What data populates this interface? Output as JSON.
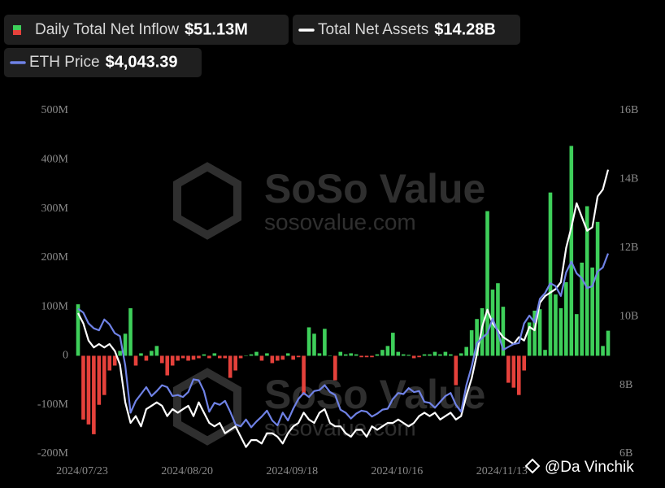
{
  "chart_data": {
    "type": "combo",
    "legend": [
      {
        "name": "Daily Total Net Inflow",
        "latest_label": "$51.13M"
      },
      {
        "name": "Total Net Assets",
        "latest_label": "$14.28B"
      },
      {
        "name": "ETH Price",
        "latest_label": "$4,043.39"
      }
    ],
    "categories": [
      "2024/07/23",
      null,
      null,
      null,
      null,
      null,
      null,
      null,
      null,
      null,
      null,
      null,
      null,
      null,
      null,
      null,
      null,
      null,
      null,
      null,
      "2024/08/20",
      null,
      null,
      null,
      null,
      null,
      null,
      null,
      null,
      null,
      null,
      null,
      null,
      null,
      null,
      null,
      null,
      null,
      null,
      null,
      "2024/09/18",
      null,
      null,
      null,
      null,
      null,
      null,
      null,
      null,
      null,
      null,
      null,
      null,
      null,
      null,
      null,
      null,
      null,
      null,
      null,
      "2024/10/16",
      null,
      null,
      null,
      null,
      null,
      null,
      null,
      null,
      null,
      null,
      null,
      null,
      null,
      null,
      null,
      null,
      null,
      null,
      null,
      "2024/11/13",
      null,
      null,
      null,
      null,
      null,
      null,
      null,
      null,
      null,
      null,
      null,
      null,
      null,
      null,
      null,
      null,
      null,
      null,
      null,
      null,
      null
    ],
    "series": [
      {
        "name": "Daily Total Net Inflow",
        "type": "bar",
        "axis": "y",
        "color": "#3ecf5a",
        "negative_color": "#e5413b",
        "values": [
          105,
          -130,
          -140,
          -160,
          -100,
          -80,
          -30,
          -20,
          10,
          45,
          97,
          -20,
          5,
          -10,
          10,
          20,
          -15,
          -40,
          -20,
          -10,
          -5,
          -10,
          -8,
          -5,
          3,
          -5,
          5,
          -5,
          -5,
          -45,
          -30,
          -5,
          0,
          3,
          8,
          -10,
          5,
          -15,
          -10,
          -8,
          5,
          -8,
          -3,
          -80,
          58,
          45,
          5,
          55,
          0,
          -50,
          8,
          3,
          5,
          3,
          -3,
          -3,
          -3,
          3,
          12,
          20,
          47,
          8,
          3,
          2,
          -5,
          -3,
          3,
          3,
          8,
          3,
          8,
          3,
          -60,
          5,
          18,
          52,
          75,
          97,
          295,
          135,
          148,
          100,
          -55,
          -65,
          -80,
          -30,
          68,
          92,
          95,
          12,
          333,
          125,
          97,
          150,
          428,
          85,
          190,
          305,
          180,
          273,
          20,
          51.13
        ]
      },
      {
        "name": "Total Net Assets",
        "type": "line",
        "axis": "y2",
        "color": "#ffffff",
        "values": [
          10.1,
          9.8,
          9.3,
          9.1,
          9.2,
          9.1,
          9.2,
          9.0,
          8.6,
          7.5,
          6.9,
          7.1,
          6.8,
          7.3,
          7.4,
          7.5,
          7.4,
          7.1,
          7.3,
          7.2,
          7.3,
          7.4,
          7.1,
          7.5,
          7.2,
          6.9,
          6.8,
          6.9,
          6.6,
          6.7,
          6.8,
          6.5,
          6.2,
          6.4,
          6.4,
          6.3,
          6.6,
          6.6,
          6.5,
          6.3,
          6.6,
          6.8,
          6.9,
          7.2,
          7.0,
          6.9,
          7.2,
          7.3,
          6.9,
          6.8,
          6.8,
          6.6,
          6.5,
          6.7,
          6.7,
          6.5,
          6.8,
          6.7,
          6.8,
          6.9,
          6.9,
          7.0,
          6.9,
          6.8,
          6.9,
          7.1,
          7.2,
          7.1,
          7.2,
          7.0,
          7.1,
          7.2,
          7.0,
          7.1,
          7.7,
          8.2,
          8.9,
          9.7,
          10.2,
          9.8,
          9.6,
          9.4,
          9.3,
          9.2,
          9.4,
          9.3,
          9.7,
          9.6,
          10.4,
          10.6,
          10.7,
          10.8,
          11.0,
          12.0,
          12.6,
          13.3,
          12.9,
          12.5,
          12.6,
          13.5,
          13.7,
          14.28
        ]
      },
      {
        "name": "ETH Price",
        "type": "line",
        "axis": "y3",
        "color": "#6f82e6",
        "values": [
          3480,
          3440,
          3330,
          3280,
          3260,
          3370,
          3320,
          3230,
          3200,
          2900,
          2420,
          2540,
          2610,
          2680,
          2590,
          2640,
          2700,
          2680,
          2590,
          2600,
          2580,
          2630,
          2760,
          2750,
          2640,
          2430,
          2520,
          2500,
          2540,
          2430,
          2300,
          2280,
          2350,
          2270,
          2330,
          2380,
          2440,
          2340,
          2290,
          2420,
          2340,
          2460,
          2560,
          2620,
          2580,
          2640,
          2650,
          2700,
          2630,
          2600,
          2450,
          2420,
          2360,
          2410,
          2440,
          2430,
          2380,
          2410,
          2450,
          2460,
          2560,
          2620,
          2610,
          2670,
          2630,
          2640,
          2530,
          2520,
          2470,
          2530,
          2590,
          2620,
          2500,
          2430,
          2700,
          2890,
          3130,
          3180,
          3230,
          3380,
          3240,
          3060,
          3090,
          3120,
          3130,
          3330,
          3410,
          3340,
          3580,
          3640,
          3740,
          3710,
          3610,
          3850,
          3960,
          3840,
          3790,
          3690,
          3710,
          3860,
          3900,
          4043.39
        ]
      }
    ],
    "ylim": [
      -200,
      500
    ],
    "yticks": [
      {
        "value": -200,
        "label": "-200M"
      },
      {
        "value": -100,
        "label": "-100M"
      },
      0,
      {
        "value": 100,
        "label": "100M"
      },
      {
        "value": 200,
        "label": "200M"
      },
      {
        "value": 300,
        "label": "300M"
      },
      {
        "value": 400,
        "label": "400M"
      },
      {
        "value": 500,
        "label": "500M"
      }
    ],
    "y2lim": [
      6,
      16
    ],
    "y2ticks": [
      {
        "value": 6,
        "label": "6B"
      },
      {
        "value": 8,
        "label": "8B"
      },
      {
        "value": 10,
        "label": "10B"
      },
      {
        "value": 12,
        "label": "12B"
      },
      {
        "value": 14,
        "label": "14B"
      },
      {
        "value": 16,
        "label": "16B"
      }
    ],
    "y3lim": [
      2000,
      5500
    ],
    "grid": false
  },
  "watermark": {
    "brand": "SoSo Value",
    "site": "sosovalue.com"
  },
  "credit": "@Da Vinchik"
}
